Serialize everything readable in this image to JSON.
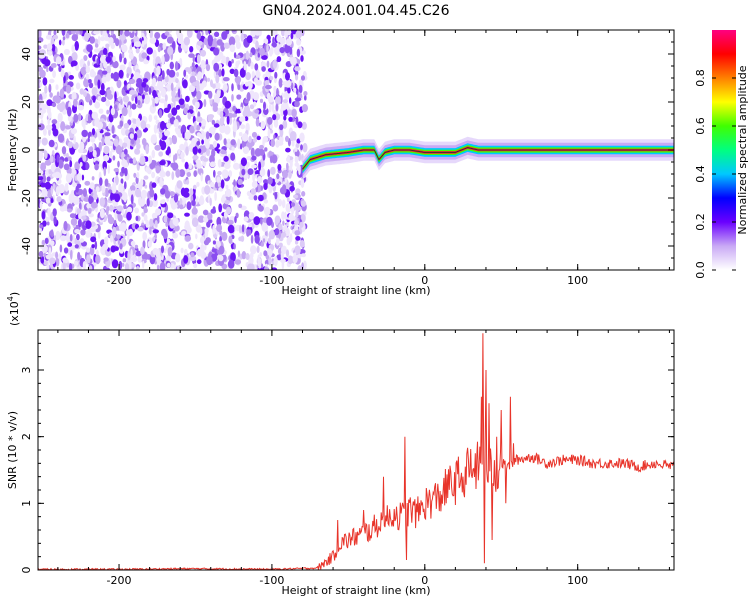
{
  "title": "GN04.2024.001.04.45.C26",
  "chart_data": [
    {
      "type": "heatmap",
      "xlabel": "Height of straight line (km)",
      "ylabel": "Frequency (Hz)",
      "xlim": [
        -253,
        163
      ],
      "ylim": [
        -50,
        50
      ],
      "xticks": [
        -200,
        -100,
        0,
        100
      ],
      "yticks": [
        -40,
        -20,
        0,
        20,
        40
      ],
      "colorbar": {
        "label": "Normalized spectral amplitude",
        "range": [
          0,
          1
        ],
        "ticks": [
          "0.0",
          "0.2",
          "0.4",
          "0.6",
          "0.8"
        ],
        "tick_values": [
          0,
          0.2,
          0.4,
          0.6,
          0.8
        ],
        "colormap": [
          "#ffffff",
          "#c9a9f5",
          "#6a00ff",
          "#0000ff",
          "#00c8ff",
          "#00ff80",
          "#40ff00",
          "#ffff00",
          "#ff8000",
          "#ff0000",
          "#ff0080"
        ]
      },
      "noise_region": [
        -253,
        -78
      ],
      "signal_track": [
        {
          "x": -80,
          "f": -8
        },
        {
          "x": -75,
          "f": -4
        },
        {
          "x": -65,
          "f": -2
        },
        {
          "x": -50,
          "f": -1
        },
        {
          "x": -40,
          "f": 0
        },
        {
          "x": -33,
          "f": 0
        },
        {
          "x": -30,
          "f": -4
        },
        {
          "x": -26,
          "f": -1
        },
        {
          "x": -20,
          "f": 0
        },
        {
          "x": -10,
          "f": 0
        },
        {
          "x": 0,
          "f": -1
        },
        {
          "x": 10,
          "f": -1
        },
        {
          "x": 20,
          "f": -1
        },
        {
          "x": 28,
          "f": 1
        },
        {
          "x": 35,
          "f": 0
        },
        {
          "x": 45,
          "f": 0
        },
        {
          "x": 80,
          "f": 0
        },
        {
          "x": 163,
          "f": 0
        }
      ]
    },
    {
      "type": "line",
      "xlabel": "Height of straight line (km)",
      "ylabel": "SNR (10 * v/v)",
      "y_multiplier": "(x10",
      "y_multiplier_exp": "4",
      "y_multiplier_close": ")",
      "xlim": [
        -253,
        163
      ],
      "ylim": [
        0,
        3.6
      ],
      "xticks": [
        -200,
        -100,
        0,
        100
      ],
      "yticks": [
        0,
        1,
        2,
        3
      ],
      "color": "#e8342a",
      "series": [
        {
          "x": [
            -253,
            -200,
            -150,
            -100,
            -70,
            -60,
            -55,
            -50,
            -45,
            -40,
            -35,
            -30,
            -25,
            -20,
            -15,
            -10,
            -5,
            0,
            5,
            10,
            15,
            20,
            25,
            30,
            35,
            40,
            45,
            50,
            55,
            60,
            70,
            80,
            90,
            100,
            110,
            120,
            130,
            140,
            150,
            163
          ],
          "y": [
            0.01,
            0.01,
            0.02,
            0.01,
            0.03,
            0.2,
            0.4,
            0.45,
            0.5,
            0.55,
            0.6,
            0.7,
            0.75,
            0.85,
            0.8,
            0.9,
            0.85,
            1.0,
            1.05,
            1.1,
            1.25,
            1.3,
            1.45,
            1.5,
            1.55,
            1.6,
            1.45,
            1.6,
            1.55,
            1.65,
            1.7,
            1.6,
            1.65,
            1.65,
            1.6,
            1.6,
            1.6,
            1.55,
            1.6,
            1.55
          ]
        }
      ],
      "spikes": [
        {
          "x": -57,
          "y": 0.75
        },
        {
          "x": -40,
          "y": 0.9
        },
        {
          "x": -27,
          "y": 1.4
        },
        {
          "x": -13,
          "y": 2.0
        },
        {
          "x": -12,
          "y": 0.15
        },
        {
          "x": 22,
          "y": 1.7
        },
        {
          "x": 25,
          "y": 1.4
        },
        {
          "x": 36,
          "y": 1.85
        },
        {
          "x": 37,
          "y": 2.6
        },
        {
          "x": 38,
          "y": 3.55
        },
        {
          "x": 39,
          "y": 0.1
        },
        {
          "x": 40,
          "y": 3.0
        },
        {
          "x": 42,
          "y": 2.5
        },
        {
          "x": 44,
          "y": 0.45
        },
        {
          "x": 47,
          "y": 2.0
        },
        {
          "x": 50,
          "y": 2.4
        },
        {
          "x": 53,
          "y": 1.0
        },
        {
          "x": 56,
          "y": 2.6
        },
        {
          "x": 58,
          "y": 1.9
        }
      ]
    }
  ]
}
